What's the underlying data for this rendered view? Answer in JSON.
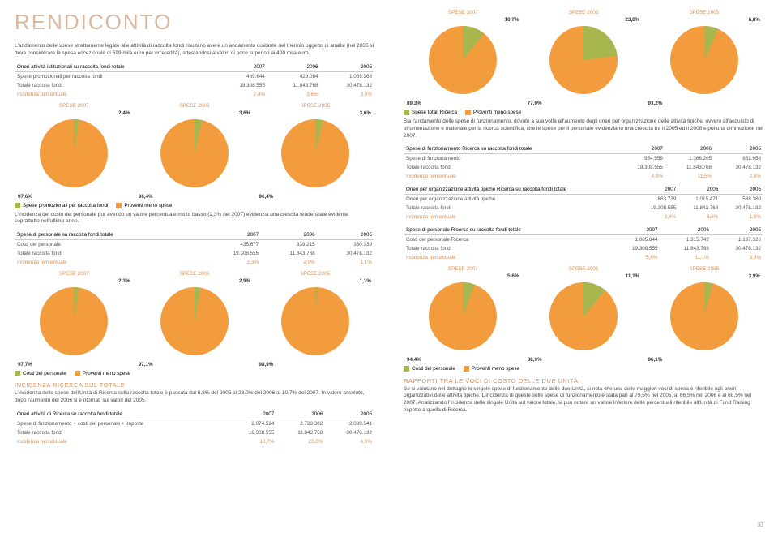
{
  "colors": {
    "orange": "#f39c3d",
    "olive": "#a8b64f",
    "tan_text": "#d8915a",
    "header_bg": "#f5ead5"
  },
  "left": {
    "title": "RENDICONTO",
    "intro": "L'andamento delle spese strettamente legate alle attività di raccolta fondi risultano avere un andamento costante nel triennio oggetto di analisi (nel 2005 si deve considerare la spesa eccezionale di 599 mila euro per un'eredità), attestandosi a valori di poco superiori ai 400 mila euro.",
    "table1": {
      "header": "Oneri attività istituzionali su raccolta fondi totale",
      "cols": [
        "2007",
        "2006",
        "2005"
      ],
      "rows": [
        {
          "label": "Spese promozionali per raccolta fondi",
          "vals": [
            "469.644",
            "429.084",
            "1.089.368"
          ]
        },
        {
          "label": "Totale raccolta fondi",
          "vals": [
            "19.308.555",
            "11.843.768",
            "30.478.132"
          ]
        }
      ],
      "incidenza": {
        "label": "Incidenza percentuale",
        "vals": [
          "2,4%",
          "3,6%",
          "3,6%"
        ]
      }
    },
    "pies1": {
      "labels": [
        "SPESE 2007",
        "SPESE 2006",
        "SPESE 2005"
      ],
      "slices": [
        {
          "a": 2.4,
          "b": 97.6
        },
        {
          "a": 3.6,
          "b": 96.4
        },
        {
          "a": 3.6,
          "b": 96.4
        }
      ],
      "top": [
        "2,4%",
        "3,6%",
        "3,6%"
      ],
      "bottom": [
        "97,6%",
        "96,4%",
        "96,4%"
      ]
    },
    "legend1": {
      "a": "Spese promozionali per raccolta fondi",
      "b": "Proventi meno spese"
    },
    "text1": "L'incidenza del costo del personale pur avendo un valore percentuale molto basso (2,3% nel 2007) evidenzia una crescita tendenziale evidente soprattutto nell'ultimo anno.",
    "table2": {
      "header": "Spese di personale su raccolta fondi totale",
      "cols": [
        "2007",
        "2006",
        "2005"
      ],
      "rows": [
        {
          "label": "Costi del personale",
          "vals": [
            "435.677",
            "339.215",
            "330.339"
          ]
        },
        {
          "label": "Totale raccolta fondi",
          "vals": [
            "19.308.555",
            "11.843.768",
            "30.478.132"
          ]
        }
      ],
      "incidenza": {
        "label": "Incidenza percentuale",
        "vals": [
          "2,3%",
          "2,9%",
          "1,1%"
        ]
      }
    },
    "pies2": {
      "labels": [
        "SPESE 2007",
        "SPESE 2006",
        "SPESE 2005"
      ],
      "slices": [
        {
          "a": 2.3,
          "b": 97.7
        },
        {
          "a": 2.9,
          "b": 97.1
        },
        {
          "a": 1.1,
          "b": 98.9
        }
      ],
      "top": [
        "2,3%",
        "2,9%",
        "1,1%"
      ],
      "bottom": [
        "97,7%",
        "97,1%",
        "98,9%"
      ]
    },
    "legend2": {
      "a": "Costi del personale",
      "b": "Proventi meno spese"
    },
    "section2_h": "INCIDENZA RICERCA SUL TOTALE",
    "section2_p": "L'incidenza delle spese dell'Unità di Ricerca sulla raccolta totale è passata dal 6,8% del 2005 al 23,0% del 2006 al 10,7% del 2007. In valore assoluto, dopo l'aumento del 2006 si è ritornati sui valori del 2005.",
    "table3": {
      "header": "Oneri attività di Ricerca su raccolta fondi totale",
      "cols": [
        "2007",
        "2006",
        "2005"
      ],
      "rows": [
        {
          "label": "Spese di funzionamento + costi del personale + imposte",
          "vals": [
            "2.074.524",
            "2.723.382",
            "2.080.541"
          ]
        },
        {
          "label": "Totale raccolta fondi",
          "vals": [
            "19.308.555",
            "11.843.768",
            "30.478.132"
          ]
        }
      ],
      "incidenza": {
        "label": "Incidenza percentuale",
        "vals": [
          "10,7%",
          "23,0%",
          "6,8%"
        ]
      }
    }
  },
  "right": {
    "pies1": {
      "labels": [
        "SPESE 2007",
        "SPESE 2006",
        "SPESE 2005"
      ],
      "slices": [
        {
          "a": 10.7,
          "b": 89.3
        },
        {
          "a": 23.0,
          "b": 77.0
        },
        {
          "a": 6.8,
          "b": 93.2
        }
      ],
      "top": [
        "10,7%",
        "23,0%",
        "6,8%"
      ],
      "bottom": [
        "89,3%",
        "77,0%",
        "93,2%"
      ]
    },
    "legend1": {
      "a": "Spese totali Ricerca",
      "b": "Proventi meno spese"
    },
    "text1": "Sia l'andamento delle spese di funzionamento, dovuto a sua volta all'aumento degli oneri per organizzazione delle attività tipiche, ovvero all'acquisto di strumentazione e materiale per la ricerca scientifica, che le spese per il personale evidenziano una crescita tra il 2005 ed il 2006 e poi una diminuzione nel 2007.",
    "table1": {
      "header": "Spese di funzionamento Ricerca su raccolta fondi totale",
      "cols": [
        "2007",
        "2006",
        "2005"
      ],
      "rows": [
        {
          "label": "Spese di funzionamento",
          "vals": [
            "954.559",
            "1.366.205",
            "852.058"
          ]
        },
        {
          "label": "Totale raccolta fondi",
          "vals": [
            "19.308.555",
            "11.843.768",
            "30.478.132"
          ]
        }
      ],
      "incidenza": {
        "label": "Incidenza percentuale",
        "vals": [
          "4,9%",
          "11,5%",
          "2,8%"
        ]
      }
    },
    "table2": {
      "header": "Oneri per organizzazione attività tipiche Ricerca su raccolta fondi totale",
      "cols": [
        "2007",
        "2006",
        "2005"
      ],
      "rows": [
        {
          "label": "Oneri per organizzazione attività tipiche",
          "vals": [
            "663.739",
            "1.015.471",
            "588.380"
          ]
        },
        {
          "label": "Totale raccolta fondi",
          "vals": [
            "19.308.555",
            "11.843.768",
            "30.478.132"
          ]
        }
      ],
      "incidenza": {
        "label": "Incidenza percentuale",
        "vals": [
          "3,4%",
          "8,6%",
          "1,9%"
        ]
      }
    },
    "table3": {
      "header": "Spese di personale Ricerca su raccolta fondi totale",
      "cols": [
        "2007",
        "2006",
        "2005"
      ],
      "rows": [
        {
          "label": "Costi del personale Ricerca",
          "vals": [
            "1.085.844",
            "1.315.742",
            "1.187.326"
          ]
        },
        {
          "label": "Totale raccolta fondi",
          "vals": [
            "19.308.555",
            "11.843.768",
            "30.478.132"
          ]
        }
      ],
      "incidenza": {
        "label": "Incidenza percentuale",
        "vals": [
          "5,6%",
          "11,1%",
          "3,9%"
        ]
      }
    },
    "pies2": {
      "labels": [
        "SPESE 2007",
        "SPESE 2006",
        "SPESE 2005"
      ],
      "slices": [
        {
          "a": 5.6,
          "b": 94.4
        },
        {
          "a": 11.1,
          "b": 88.9
        },
        {
          "a": 3.9,
          "b": 96.1
        }
      ],
      "top": [
        "5,6%",
        "11,1%",
        "3,9%"
      ],
      "bottom": [
        "94,4%",
        "88,9%",
        "96,1%"
      ]
    },
    "legend2": {
      "a": "Costi del personale",
      "b": "Proventi meno spese"
    },
    "section2_h": "RAPPORTI TRA LE VOCI DI COSTO DELLE DUE UNITÀ",
    "section2_p": "Se si valutano nel dettaglio le singole spese di funzionamento delle due Unità, si nota che una delle maggiori voci di spesa è riferibile agli oneri organizzativi delle attività tipiche. L'incidenza di queste sulle spese di funzionamento è stata pari al 79,5% nel 2005, al 66,5% nel 2006 e al 68,5% nel 2007. Analizzando l'incidenza delle singole Unità sul valore totale, si può notare un valore inferiore delle percentuali riferibile all'Unità di Fund Raising rispetto a quella di Ricerca.",
    "pagenum": "33"
  }
}
